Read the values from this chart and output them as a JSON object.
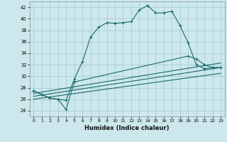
{
  "xlabel": "Humidex (Indice chaleur)",
  "bg_color": "#cce8ec",
  "grid_color": "#aacdd4",
  "line_color": "#1a6b6b",
  "xlim": [
    -0.5,
    23.5
  ],
  "ylim": [
    23,
    43
  ],
  "yticks": [
    24,
    26,
    28,
    30,
    32,
    34,
    36,
    38,
    40,
    42
  ],
  "xticks": [
    0,
    1,
    2,
    3,
    4,
    5,
    6,
    7,
    8,
    9,
    10,
    11,
    12,
    13,
    14,
    15,
    16,
    17,
    18,
    19,
    20,
    21,
    22,
    23
  ],
  "line1_x": [
    0,
    1,
    2,
    3,
    4,
    5,
    6,
    7,
    8,
    9,
    10,
    11,
    12,
    13,
    14,
    15,
    16,
    17,
    18,
    19,
    20,
    21,
    22,
    23
  ],
  "line1_y": [
    27.5,
    26.8,
    26.2,
    26.0,
    25.8,
    29.5,
    32.5,
    36.8,
    38.5,
    39.3,
    39.2,
    39.3,
    39.5,
    41.5,
    42.3,
    41.0,
    41.0,
    41.3,
    38.8,
    35.8,
    32.0,
    31.3,
    31.5,
    31.5
  ],
  "line2_x": [
    0,
    1,
    2,
    3,
    4,
    5,
    19,
    20,
    21,
    22,
    23
  ],
  "line2_y": [
    27.5,
    26.8,
    26.2,
    26.0,
    24.2,
    29.0,
    33.5,
    33.0,
    32.0,
    31.5,
    31.5
  ],
  "line3_x": [
    0,
    23
  ],
  "line3_y": [
    27.0,
    32.3
  ],
  "line4_x": [
    0,
    23
  ],
  "line4_y": [
    26.5,
    31.5
  ],
  "line5_x": [
    0,
    23
  ],
  "line5_y": [
    26.0,
    30.5
  ]
}
